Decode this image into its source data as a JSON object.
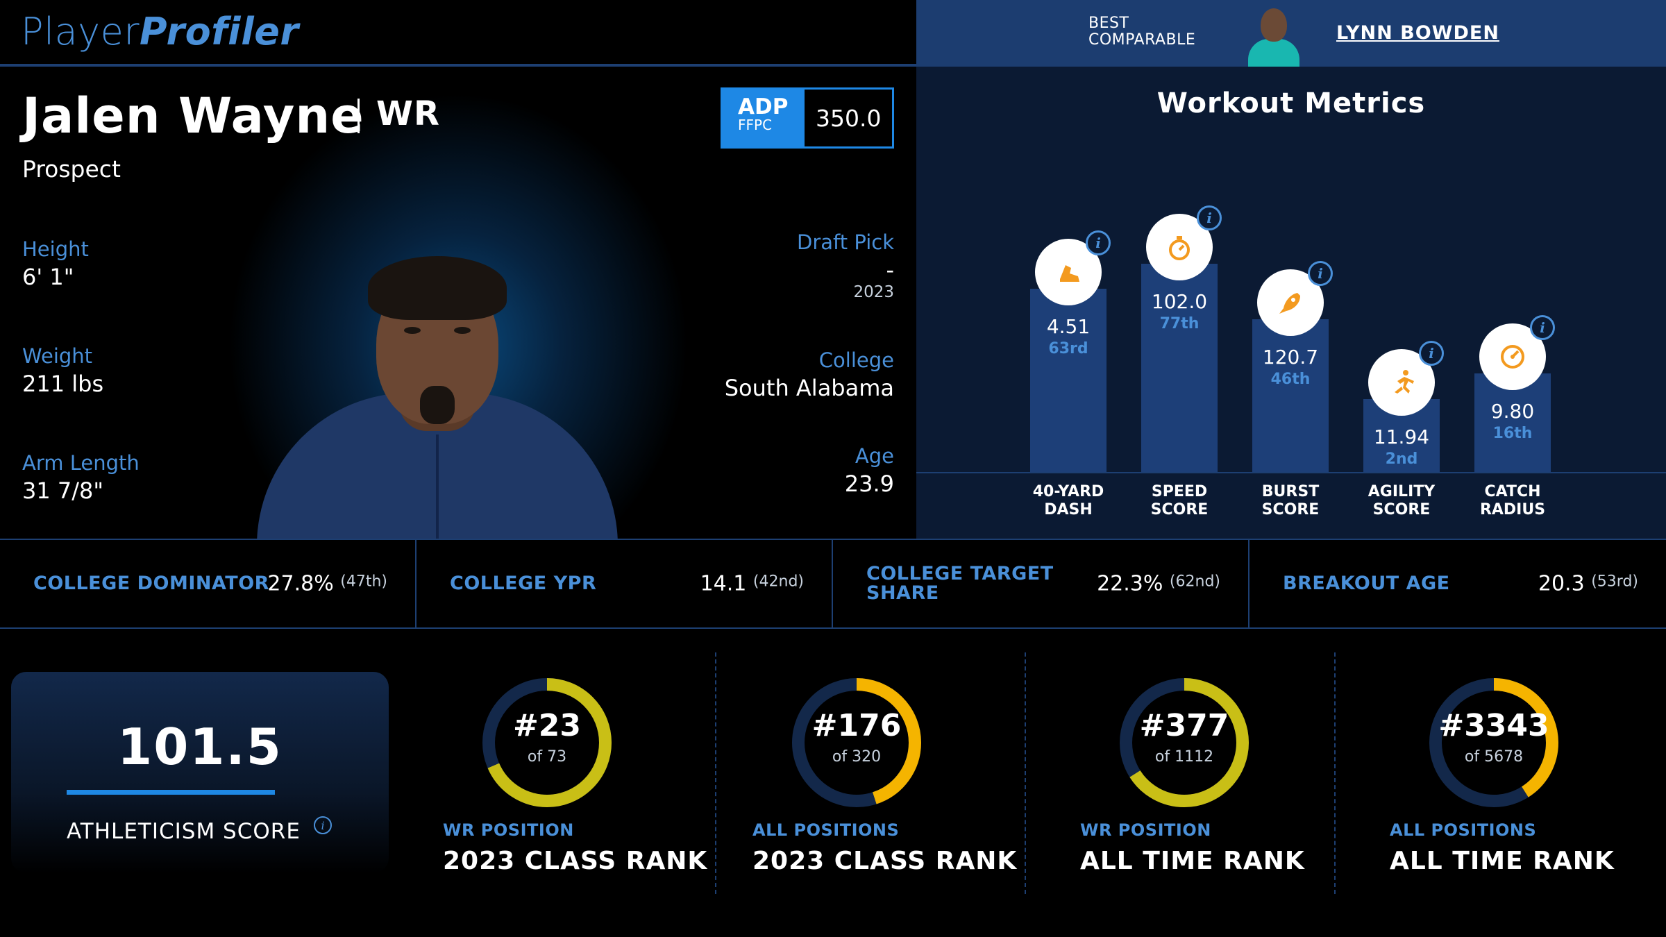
{
  "header": {
    "logo_part1": "Player",
    "logo_part2": "Profiler",
    "best_comparable_label_1": "BEST",
    "best_comparable_label_2": "COMPARABLE",
    "best_comparable_name": "LYNN BOWDEN"
  },
  "player": {
    "name": "Jalen Wayne",
    "position": "WR",
    "status": "Prospect",
    "adp": {
      "label": "ADP",
      "source": "FFPC",
      "value": "350.0"
    },
    "height": {
      "label": "Height",
      "value": "6' 1\""
    },
    "weight": {
      "label": "Weight",
      "value": "211 lbs"
    },
    "arm_length": {
      "label": "Arm Length",
      "value": "31 7/8\""
    },
    "draft_pick": {
      "label": "Draft Pick",
      "value": "-",
      "year": "2023"
    },
    "college": {
      "label": "College",
      "value": "South Alabama"
    },
    "age": {
      "label": "Age",
      "value": "23.9"
    }
  },
  "workout": {
    "title": "Workout Metrics",
    "metrics": [
      {
        "label_1": "40-YARD",
        "label_2": "DASH",
        "value": "4.51",
        "rank": "63rd",
        "percentile": 63,
        "icon": "running-shoe-icon"
      },
      {
        "label_1": "SPEED",
        "label_2": "SCORE",
        "value": "102.0",
        "rank": "77th",
        "percentile": 77,
        "icon": "stopwatch-icon"
      },
      {
        "label_1": "BURST",
        "label_2": "SCORE",
        "value": "120.7",
        "rank": "46th",
        "percentile": 46,
        "icon": "rocket-icon"
      },
      {
        "label_1": "AGILITY",
        "label_2": "SCORE",
        "value": "11.94",
        "rank": "2nd",
        "percentile": 2,
        "icon": "runner-icon"
      },
      {
        "label_1": "CATCH",
        "label_2": "RADIUS",
        "value": "9.80",
        "rank": "16th",
        "percentile": 16,
        "icon": "gauge-icon"
      }
    ]
  },
  "college_stats": [
    {
      "label": "College Dominator",
      "value": "27.8%",
      "rank": "(47th)"
    },
    {
      "label": "College YPR",
      "value": "14.1",
      "rank": "(42nd)"
    },
    {
      "label": "College Target Share",
      "value": "22.3%",
      "rank": "(62nd)"
    },
    {
      "label": "Breakout Age",
      "value": "20.3",
      "rank": "(53rd)"
    }
  ],
  "athleticism": {
    "score": "101.5",
    "label": "Athleticism Score"
  },
  "ranks": [
    {
      "rank": "#23",
      "of": "of 73",
      "sub": "WR Position",
      "title": "2023 Class Rank",
      "fraction": 0.685,
      "color": "#c9bf16"
    },
    {
      "rank": "#176",
      "of": "of 320",
      "sub": "All Positions",
      "title": "2023 Class Rank",
      "fraction": 0.45,
      "color": "#f5b400"
    },
    {
      "rank": "#377",
      "of": "of 1112",
      "sub": "WR Position",
      "title": "All Time Rank",
      "fraction": 0.66,
      "color": "#c9bf16"
    },
    {
      "rank": "#3343",
      "of": "of 5678",
      "sub": "All Positions",
      "title": "All Time Rank",
      "fraction": 0.41,
      "color": "#f5b400"
    }
  ],
  "colors": {
    "accent_blue": "#4a90d9",
    "bright_blue": "#1e88e5",
    "bar_blue": "#1d3f78",
    "icon_orange": "#f39a1f",
    "ring_track": "#13284a"
  }
}
